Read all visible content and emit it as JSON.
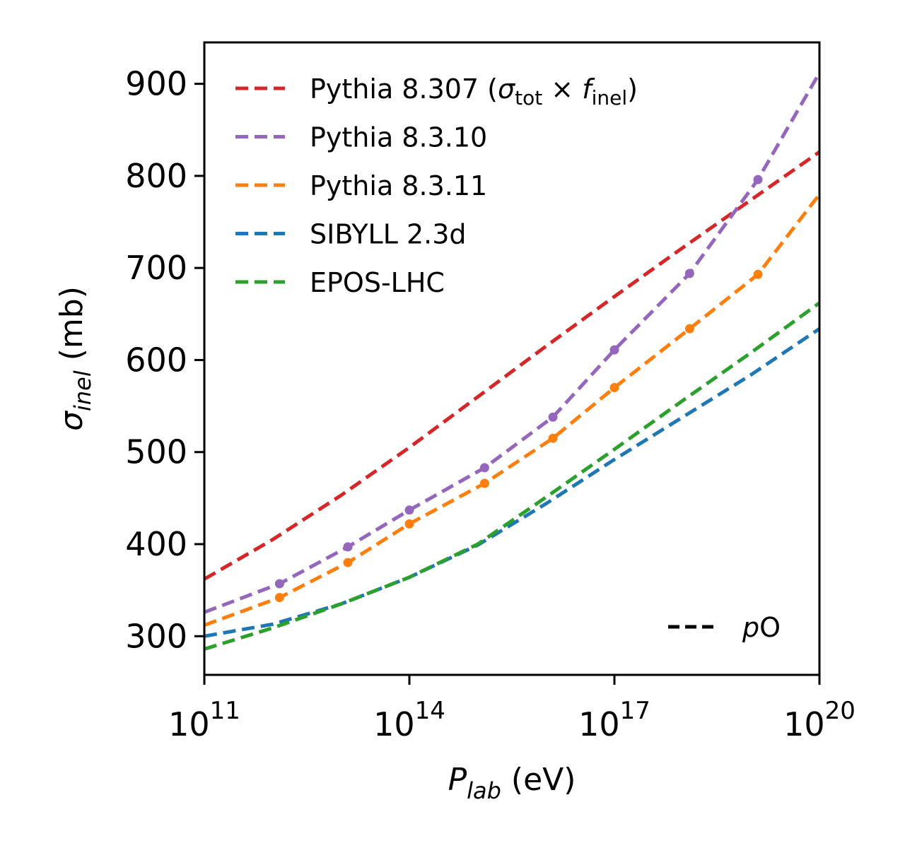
{
  "chart_data": {
    "type": "line",
    "title": "",
    "xlabel": {
      "main": "P",
      "sub": "lab",
      "unit": " (eV)"
    },
    "ylabel": {
      "main": "σ",
      "sub": "inel",
      "unit": " (mb)"
    },
    "xscale": "log",
    "xlim": [
      100000000000.0,
      1e+20
    ],
    "ylim": [
      258,
      945
    ],
    "x_ticks": [
      {
        "value": 100000000000.0,
        "base": "10",
        "exp": "11"
      },
      {
        "value": 100000000000000.0,
        "base": "10",
        "exp": "14"
      },
      {
        "value": 1e+17,
        "base": "10",
        "exp": "17"
      },
      {
        "value": 1e+20,
        "base": "10",
        "exp": "20"
      }
    ],
    "y_ticks": [
      {
        "value": 300,
        "label": "300"
      },
      {
        "value": 400,
        "label": "400"
      },
      {
        "value": 500,
        "label": "500"
      },
      {
        "value": 600,
        "label": "600"
      },
      {
        "value": 700,
        "label": "700"
      },
      {
        "value": 800,
        "label": "800"
      },
      {
        "value": 900,
        "label": "900"
      }
    ],
    "grid": false,
    "legend_position": "top-left",
    "series": [
      {
        "name": "Pythia 8.307 (σtot × finel)",
        "legend": {
          "pre": "Pythia 8.307 (",
          "sym1": "σ",
          "sub1": "tot",
          "mid": " × ",
          "sym2": "f",
          "sub2": "inel",
          "post": ")"
        },
        "color": "#d62728",
        "markers": false,
        "x": [
          100000000000.0,
          1000000000000.0,
          10000000000000.0,
          100000000000000.0,
          1000000000000000.0,
          1e+16,
          1e+17,
          1e+18,
          1e+19,
          1e+20
        ],
        "y": [
          362,
          405,
          453,
          505,
          560,
          615,
          669,
          722,
          774,
          826
        ]
      },
      {
        "name": "Pythia 8.3.10",
        "color": "#9467bd",
        "markers": true,
        "x": [
          100000000000.0,
          1260000000000.0,
          12600000000000.0,
          100000000000000.0,
          1260000000000000.0,
          1.26e+16,
          1e+17,
          1.26e+18,
          1.26e+19,
          1e+20
        ],
        "y": [
          326,
          357,
          397,
          437,
          483,
          538,
          611,
          694,
          796,
          912
        ]
      },
      {
        "name": "Pythia 8.3.11",
        "color": "#ff7f0e",
        "markers": true,
        "x": [
          100000000000.0,
          1260000000000.0,
          12600000000000.0,
          100000000000000.0,
          1260000000000000.0,
          1.26e+16,
          1e+17,
          1.26e+18,
          1.26e+19,
          1e+20
        ],
        "y": [
          312,
          342,
          380,
          422,
          466,
          515,
          570,
          634,
          693,
          780
        ]
      },
      {
        "name": "SIBYLL 2.3d",
        "color": "#1f77b4",
        "markers": false,
        "x": [
          100000000000.0,
          1000000000000.0,
          10000000000000.0,
          100000000000000.0,
          1000000000000000.0,
          1e+16,
          1e+17,
          1e+18,
          1e+19,
          1e+20
        ],
        "y": [
          300,
          313,
          335,
          364,
          399,
          444,
          492,
          538,
          584,
          634
        ]
      },
      {
        "name": "EPOS-LHC",
        "color": "#2ca02c",
        "markers": false,
        "x": [
          100000000000.0,
          1000000000000.0,
          10000000000000.0,
          100000000000000.0,
          1000000000000000.0,
          1e+16,
          1e+17,
          1e+18,
          1e+19,
          1e+20
        ],
        "y": [
          286,
          309,
          335,
          364,
          400,
          451,
          503,
          556,
          608,
          662
        ]
      }
    ],
    "annotation": {
      "italic": "p",
      "normal": "O",
      "line_color": "#000000"
    }
  }
}
